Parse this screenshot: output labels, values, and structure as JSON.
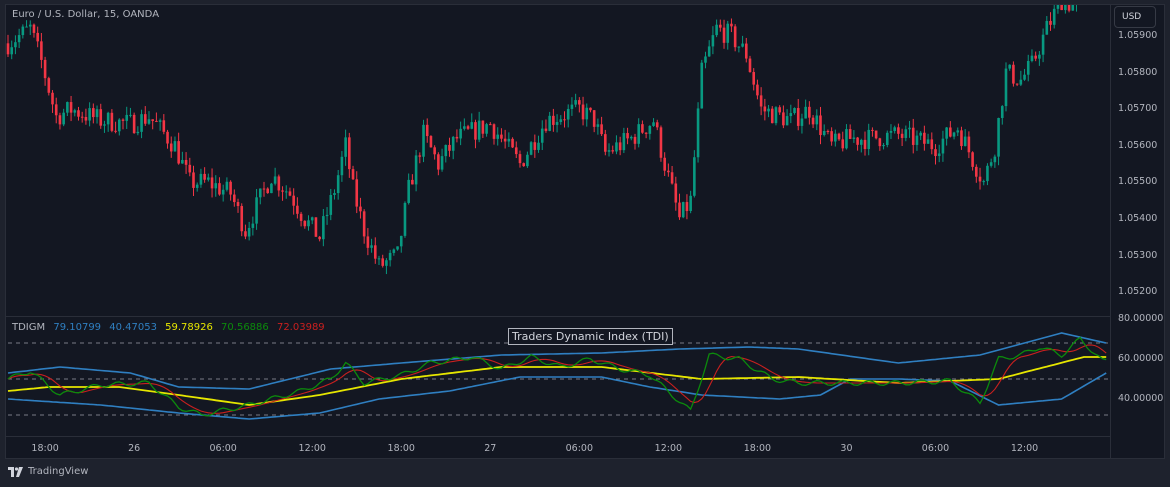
{
  "header": {
    "symbol_title": "Euro / U.S. Dollar, 15, OANDA",
    "currency_button": "USD"
  },
  "indicator_legend": {
    "name": "TDIGM",
    "values": [
      {
        "text": "79.10799",
        "color": "#2f7fc1"
      },
      {
        "text": "40.47053",
        "color": "#2f7fc1"
      },
      {
        "text": "59.78926",
        "color": "#e6e600"
      },
      {
        "text": "70.56886",
        "color": "#0c8a0c"
      },
      {
        "text": "72.03989",
        "color": "#c9201f"
      }
    ],
    "tooltip": "Traders Dynamic Index (TDI)"
  },
  "price_axis": [
    "1.05900",
    "1.05800",
    "1.05700",
    "1.05600",
    "1.05500",
    "1.05400",
    "1.05300",
    "1.05200"
  ],
  "indicator_axis": [
    "80.00000",
    "60.00000",
    "40.00000"
  ],
  "time_axis": [
    "18:00",
    "26",
    "06:00",
    "12:00",
    "18:00",
    "27",
    "06:00",
    "12:00",
    "18:00",
    "30",
    "06:00",
    "12:00"
  ],
  "footer": {
    "brand": "TradingView"
  },
  "colors": {
    "up": "#089981",
    "down": "#f23645",
    "background": "#131722",
    "band": "#2f7fc1",
    "base": "#e6e600",
    "rsi": "#0c8a0c",
    "signal": "#c9201f"
  },
  "chart_data": [
    {
      "type": "candlestick",
      "title": "Euro / U.S. Dollar, 15, OANDA",
      "ylim": [
        1.0517,
        1.06
      ],
      "price_path_bar_close": [
        [
          0,
          1.0588
        ],
        [
          6,
          1.0592
        ],
        [
          9,
          1.0583
        ],
        [
          13,
          1.0568
        ],
        [
          17,
          1.057
        ],
        [
          25,
          1.0567
        ],
        [
          33,
          1.0566
        ],
        [
          38,
          1.0568
        ],
        [
          45,
          1.056
        ],
        [
          49,
          1.055
        ],
        [
          54,
          1.055
        ],
        [
          60,
          1.0547
        ],
        [
          64,
          1.0537
        ],
        [
          71,
          1.0552
        ],
        [
          76,
          1.0547
        ],
        [
          80,
          1.054
        ],
        [
          84,
          1.0535
        ],
        [
          88,
          1.0548
        ],
        [
          91,
          1.056
        ],
        [
          93,
          1.0548
        ],
        [
          96,
          1.0537
        ],
        [
          100,
          1.0527
        ],
        [
          105,
          1.053
        ],
        [
          108,
          1.0548
        ],
        [
          112,
          1.0563
        ],
        [
          116,
          1.0555
        ],
        [
          121,
          1.0562
        ],
        [
          130,
          1.0566
        ],
        [
          138,
          1.0555
        ],
        [
          145,
          1.0567
        ],
        [
          154,
          1.057
        ],
        [
          158,
          1.0567
        ],
        [
          161,
          1.0558
        ],
        [
          168,
          1.0562
        ],
        [
          174,
          1.0567
        ],
        [
          177,
          1.0555
        ],
        [
          181,
          1.054
        ],
        [
          184,
          1.0545
        ],
        [
          187,
          1.058
        ],
        [
          191,
          1.0592
        ],
        [
          195,
          1.059
        ],
        [
          199,
          1.0585
        ],
        [
          203,
          1.057
        ],
        [
          211,
          1.0567
        ],
        [
          216,
          1.057
        ],
        [
          222,
          1.056
        ],
        [
          227,
          1.0562
        ],
        [
          232,
          1.0562
        ],
        [
          240,
          1.0563
        ],
        [
          250,
          1.056
        ],
        [
          256,
          1.0565
        ],
        [
          263,
          1.055
        ],
        [
          266,
          1.056
        ],
        [
          269,
          1.058
        ],
        [
          273,
          1.0578
        ],
        [
          276,
          1.0582
        ],
        [
          280,
          1.0592
        ],
        [
          284,
          1.06
        ],
        [
          288,
          1.0598
        ]
      ]
    },
    {
      "type": "line",
      "title": "TDIGM",
      "ylim": [
        22,
        82
      ],
      "levels": [
        68,
        50,
        32
      ],
      "series": [
        {
          "name": "upper band",
          "color": "#2f7fc1",
          "points": [
            [
              0,
              53
            ],
            [
              14,
              56
            ],
            [
              33,
              53
            ],
            [
              46,
              46
            ],
            [
              65,
              45
            ],
            [
              87,
              55
            ],
            [
              106,
              58
            ],
            [
              133,
              62
            ],
            [
              160,
              63
            ],
            [
              181,
              65
            ],
            [
              200,
              66
            ],
            [
              213,
              65
            ],
            [
              240,
              58
            ],
            [
              262,
              62
            ],
            [
              284,
              73
            ],
            [
              296,
              68
            ]
          ]
        },
        {
          "name": "lower band",
          "color": "#2f7fc1",
          "points": [
            [
              0,
              40
            ],
            [
              25,
              37
            ],
            [
              46,
              33
            ],
            [
              65,
              30
            ],
            [
              84,
              33
            ],
            [
              100,
              40
            ],
            [
              119,
              44
            ],
            [
              138,
              51
            ],
            [
              160,
              51
            ],
            [
              173,
              46
            ],
            [
              187,
              42
            ],
            [
              208,
              40
            ],
            [
              219,
              42
            ],
            [
              227,
              50
            ],
            [
              240,
              50
            ],
            [
              254,
              49
            ],
            [
              267,
              37
            ],
            [
              284,
              40
            ],
            [
              296,
              53
            ]
          ]
        },
        {
          "name": "market base",
          "color": "#e6e600",
          "points": [
            [
              0,
              44
            ],
            [
              11,
              46
            ],
            [
              30,
              46
            ],
            [
              46,
              42
            ],
            [
              65,
              37
            ],
            [
              84,
              42
            ],
            [
              106,
              50
            ],
            [
              133,
              56
            ],
            [
              160,
              56
            ],
            [
              187,
              50
            ],
            [
              213,
              51
            ],
            [
              240,
              48
            ],
            [
              267,
              50
            ],
            [
              290,
              61
            ]
          ]
        },
        {
          "name": "rsi price line",
          "color": "#0c8a0c",
          "points": [
            [
              0,
              50
            ],
            [
              6,
              54
            ],
            [
              14,
              42
            ],
            [
              25,
              47
            ],
            [
              38,
              48
            ],
            [
              46,
              36
            ],
            [
              52,
              32
            ],
            [
              65,
              37
            ],
            [
              79,
              44
            ],
            [
              87,
              50
            ],
            [
              91,
              58
            ],
            [
              96,
              48
            ],
            [
              106,
              52
            ],
            [
              114,
              58
            ],
            [
              125,
              61
            ],
            [
              133,
              55
            ],
            [
              141,
              61
            ],
            [
              149,
              56
            ],
            [
              157,
              60
            ],
            [
              165,
              55
            ],
            [
              173,
              52
            ],
            [
              179,
              42
            ],
            [
              184,
              34
            ],
            [
              189,
              62
            ],
            [
              197,
              60
            ],
            [
              206,
              50
            ],
            [
              213,
              48
            ],
            [
              227,
              48
            ],
            [
              240,
              48
            ],
            [
              254,
              49
            ],
            [
              262,
              38
            ],
            [
              267,
              60
            ],
            [
              273,
              62
            ],
            [
              278,
              66
            ],
            [
              284,
              62
            ],
            [
              289,
              70
            ],
            [
              295,
              59
            ]
          ]
        }
      ]
    }
  ]
}
